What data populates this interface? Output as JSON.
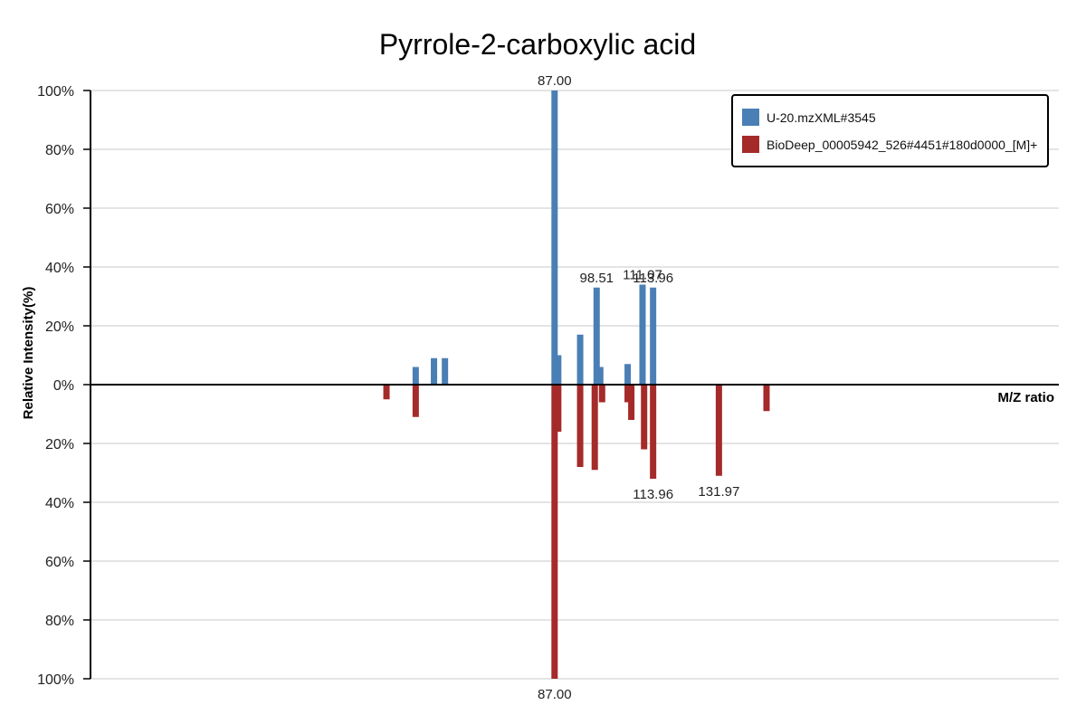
{
  "chart_data": {
    "type": "bar",
    "title": "Pyrrole-2-carboxylic acid",
    "xlabel": "M/Z ratio",
    "ylabel": "Relative Intensity(%)",
    "yticks_top": [
      "100%",
      "80%",
      "60%",
      "40%",
      "20%",
      "0%"
    ],
    "yticks_bottom": [
      "20%",
      "40%",
      "60%",
      "80%",
      "100%"
    ],
    "ylim": [
      -100,
      100
    ],
    "xlim": [
      -40,
      225
    ],
    "grid": true,
    "legend_position": "top-right",
    "colors": {
      "sample": "#4a7fb5",
      "reference": "#a52a2a"
    },
    "series": [
      {
        "name": "U-20.mzXML#3545",
        "direction": "up",
        "peaks": [
          {
            "mz": 49.0,
            "intensity": 6
          },
          {
            "mz": 54.0,
            "intensity": 9
          },
          {
            "mz": 57.0,
            "intensity": 9
          },
          {
            "mz": 87.0,
            "intensity": 100
          },
          {
            "mz": 88.0,
            "intensity": 10
          },
          {
            "mz": 94.0,
            "intensity": 17
          },
          {
            "mz": 98.51,
            "intensity": 33
          },
          {
            "mz": 99.5,
            "intensity": 6
          },
          {
            "mz": 107.0,
            "intensity": 7
          },
          {
            "mz": 111.07,
            "intensity": 34
          },
          {
            "mz": 113.96,
            "intensity": 33
          }
        ]
      },
      {
        "name": "BioDeep_00005942_526#4451#180d0000_[M]+",
        "direction": "down",
        "peaks": [
          {
            "mz": 41.0,
            "intensity": 5
          },
          {
            "mz": 49.0,
            "intensity": 11
          },
          {
            "mz": 87.0,
            "intensity": 100
          },
          {
            "mz": 88.0,
            "intensity": 16
          },
          {
            "mz": 94.0,
            "intensity": 28
          },
          {
            "mz": 98.0,
            "intensity": 29
          },
          {
            "mz": 100.0,
            "intensity": 6
          },
          {
            "mz": 107.0,
            "intensity": 6
          },
          {
            "mz": 108.0,
            "intensity": 12
          },
          {
            "mz": 111.5,
            "intensity": 22
          },
          {
            "mz": 113.96,
            "intensity": 32
          },
          {
            "mz": 131.97,
            "intensity": 31
          },
          {
            "mz": 145.0,
            "intensity": 9
          }
        ]
      }
    ],
    "annotations": [
      {
        "text": "87.00",
        "series": 0,
        "mz": 87.0
      },
      {
        "text": "98.51",
        "series": 0,
        "mz": 98.51
      },
      {
        "text": "111.07",
        "series": 0,
        "mz": 111.07
      },
      {
        "text": "113.96",
        "series": 0,
        "mz": 113.96
      },
      {
        "text": "87.00",
        "series": 1,
        "mz": 87.0
      },
      {
        "text": "113.96",
        "series": 1,
        "mz": 113.96
      },
      {
        "text": "131.97",
        "series": 1,
        "mz": 131.97
      }
    ]
  }
}
